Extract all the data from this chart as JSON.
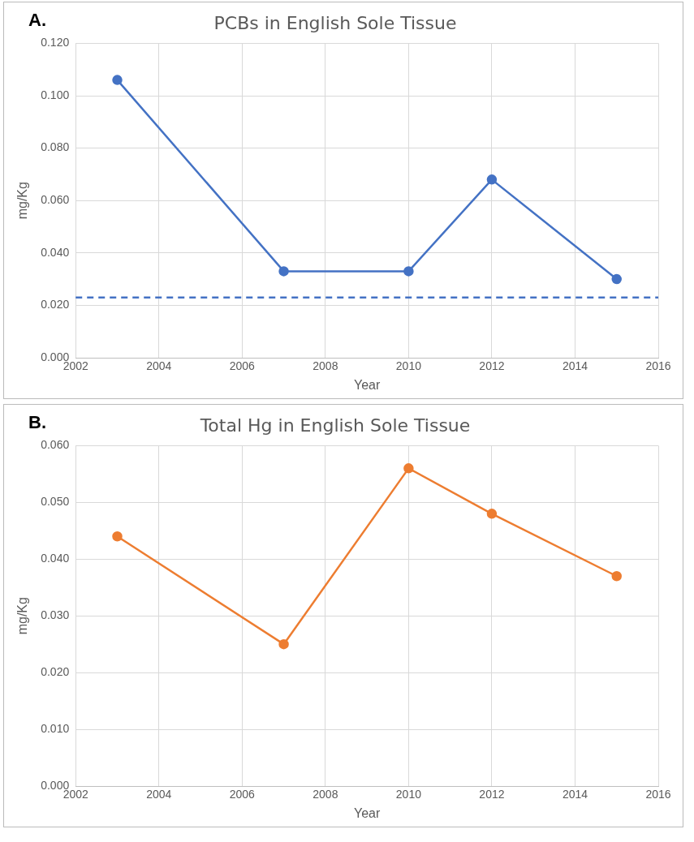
{
  "chart_data": [
    {
      "type": "line",
      "title": "PCBs in English Sole Tissue",
      "xlabel": "Year",
      "ylabel": "mg/Kg",
      "annotations": [
        "A."
      ],
      "x": [
        2003,
        2007,
        2010,
        2012,
        2015
      ],
      "series": [
        {
          "color": "#4472c4",
          "values": [
            0.106,
            0.033,
            0.033,
            0.068,
            0.03
          ]
        }
      ],
      "xlim": [
        2002,
        2016
      ],
      "xticks": [
        2002,
        2004,
        2006,
        2008,
        2010,
        2012,
        2014,
        2016
      ],
      "ylim": [
        0,
        0.12
      ],
      "yticks": [
        {
          "value": 0,
          "label": "0.000"
        },
        {
          "value": 0.02,
          "label": "0.020"
        },
        {
          "value": 0.04,
          "label": "0.040"
        },
        {
          "value": 0.06,
          "label": "0.060"
        },
        {
          "value": 0.08,
          "label": "0.080"
        },
        {
          "value": 0.1,
          "label": "0.100"
        },
        {
          "value": 0.12,
          "label": "0.120"
        }
      ],
      "ref_lines": [
        {
          "axis": "y",
          "value": 0.023,
          "color": "#4472c4",
          "line_style": "dashed"
        }
      ],
      "grid": true,
      "legend": false,
      "marker": "circle",
      "line_style": "solid"
    },
    {
      "type": "line",
      "title": "Total Hg in English Sole Tissue",
      "xlabel": "Year",
      "ylabel": "mg/Kg",
      "annotations": [
        "B."
      ],
      "x": [
        2003,
        2007,
        2010,
        2012,
        2015
      ],
      "series": [
        {
          "color": "#ed7d31",
          "values": [
            0.044,
            0.025,
            0.056,
            0.048,
            0.037
          ]
        }
      ],
      "xlim": [
        2002,
        2016
      ],
      "xticks": [
        2002,
        2004,
        2006,
        2008,
        2010,
        2012,
        2014,
        2016
      ],
      "ylim": [
        0,
        0.06
      ],
      "yticks": [
        {
          "value": 0,
          "label": "0.000"
        },
        {
          "value": 0.01,
          "label": "0.010"
        },
        {
          "value": 0.02,
          "label": "0.020"
        },
        {
          "value": 0.03,
          "label": "0.030"
        },
        {
          "value": 0.04,
          "label": "0.040"
        },
        {
          "value": 0.05,
          "label": "0.050"
        },
        {
          "value": 0.06,
          "label": "0.060"
        }
      ],
      "grid": true,
      "legend": false,
      "marker": "circle",
      "line_style": "solid"
    }
  ]
}
